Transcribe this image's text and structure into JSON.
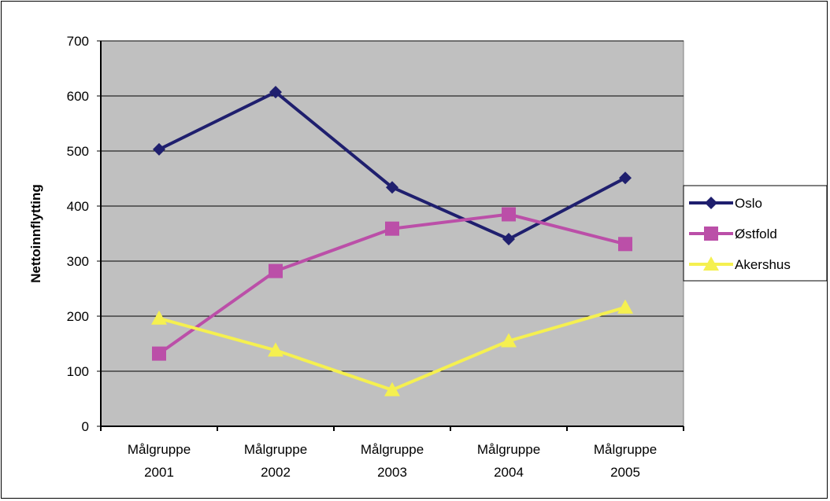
{
  "chart_data": {
    "type": "line",
    "title": "",
    "xlabel": "",
    "ylabel": "Nettoinnflytting",
    "ylim": [
      0,
      700
    ],
    "yticks": [
      0,
      100,
      200,
      300,
      400,
      500,
      600,
      700
    ],
    "grid": true,
    "legend_position": "right",
    "plot_background": "#c0c0c0",
    "categories": [
      [
        "Målgruppe",
        "2001"
      ],
      [
        "Målgruppe",
        "2002"
      ],
      [
        "Målgruppe",
        "2003"
      ],
      [
        "Målgruppe",
        "2004"
      ],
      [
        "Målgruppe",
        "2005"
      ]
    ],
    "series": [
      {
        "name": "Oslo",
        "values": [
          503,
          607,
          434,
          340,
          451
        ],
        "color": "#1f1f6e",
        "marker": "diamond"
      },
      {
        "name": "Østfold",
        "values": [
          132,
          282,
          359,
          385,
          331
        ],
        "color": "#bb4fa8",
        "marker": "square"
      },
      {
        "name": "Akershus",
        "values": [
          196,
          138,
          66,
          155,
          216
        ],
        "color": "#f5f050",
        "marker": "triangle"
      }
    ]
  }
}
